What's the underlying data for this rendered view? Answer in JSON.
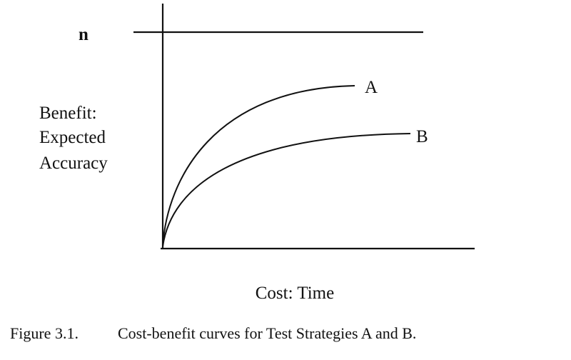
{
  "figure": {
    "limit_label": "n",
    "y_label": [
      "Benefit:",
      "Expected",
      "Accuracy"
    ],
    "curve_labels": [
      "A",
      "B"
    ],
    "x_label": "Cost: Time",
    "caption": {
      "number": "Figure 3.1.",
      "text": "Cost-benefit curves for Test Strategies A and B."
    }
  }
}
